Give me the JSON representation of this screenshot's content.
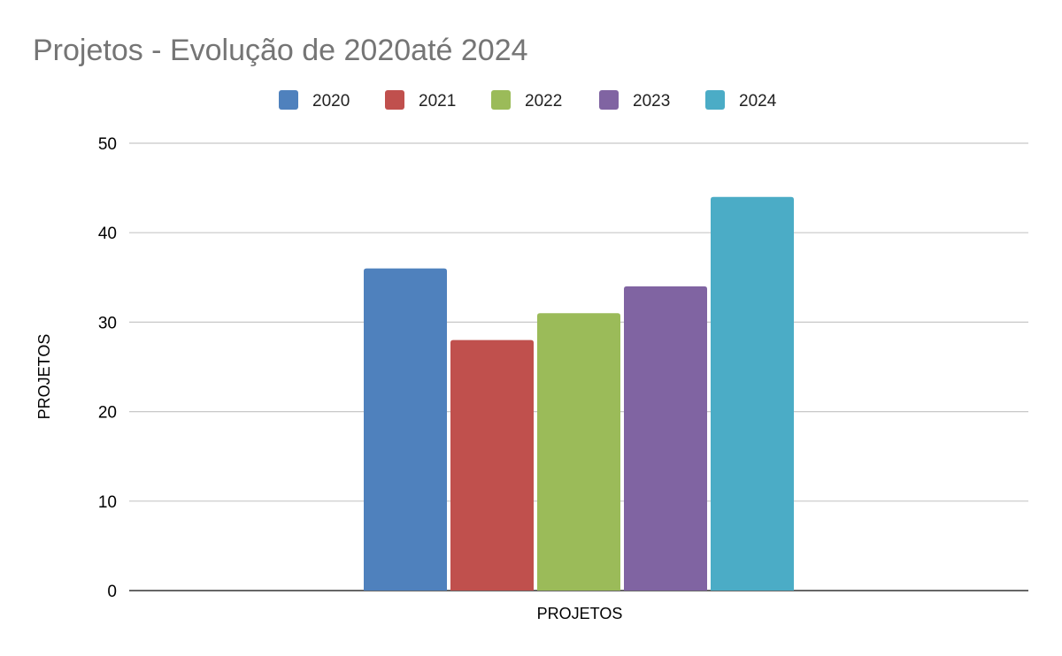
{
  "chart_data": {
    "type": "bar",
    "title": "Projetos  - Evolução de 2020até 2024",
    "categories": [
      "PROJETOS"
    ],
    "series": [
      {
        "name": "2020",
        "values": [
          36
        ],
        "color": "#4f81bd"
      },
      {
        "name": "2021",
        "values": [
          28
        ],
        "color": "#c0504d"
      },
      {
        "name": "2022",
        "values": [
          31
        ],
        "color": "#9bbb59"
      },
      {
        "name": "2023",
        "values": [
          34
        ],
        "color": "#8064a2"
      },
      {
        "name": "2024",
        "values": [
          44
        ],
        "color": "#4bacc6"
      }
    ],
    "xlabel": "PROJETOS",
    "ylabel": "PROJETOS",
    "ylim": [
      0,
      50
    ],
    "yticks": [
      0,
      10,
      20,
      30,
      40,
      50
    ],
    "grid": true,
    "legend": "top-center"
  }
}
